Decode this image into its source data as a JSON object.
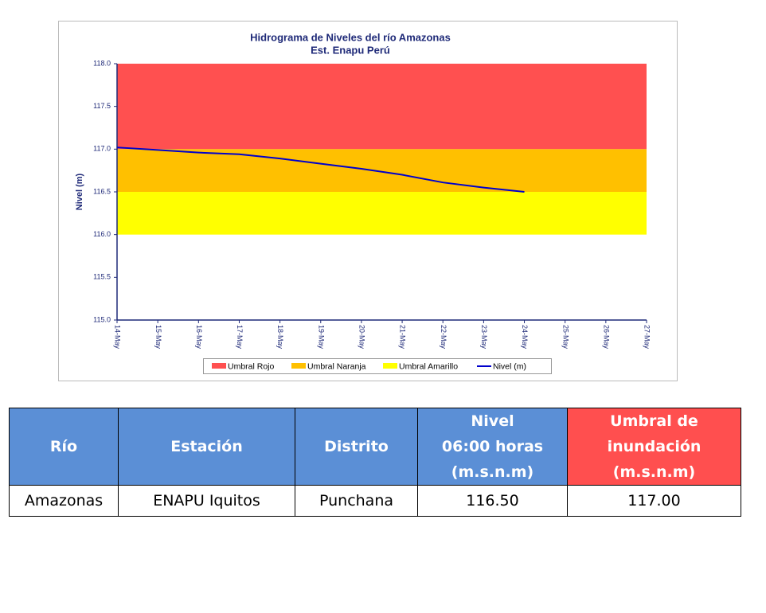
{
  "chart_data": {
    "type": "line",
    "title": "Hidrograma de Niveles del río Amazonas",
    "subtitle": "Est. Enapu Perú",
    "y_label": "Nivel (m)",
    "categories": [
      "14-May",
      "15-May",
      "16-May",
      "17-May",
      "18-May",
      "19-May",
      "20-May",
      "21-May",
      "22-May",
      "23-May",
      "24-May",
      "25-May",
      "26-May",
      "27-May"
    ],
    "bands": [
      {
        "name": "Umbral Rojo",
        "color": "#ff5050",
        "from": 117,
        "to": 118
      },
      {
        "name": "Umbral Naranja",
        "color": "#ffc000",
        "from": 116.5,
        "to": 117
      },
      {
        "name": "Umbral Amarillo",
        "color": "#ffff00",
        "from": 116,
        "to": 116.5
      }
    ],
    "series": [
      {
        "name": "Nivel (m)",
        "color": "#0000cc",
        "values": [
          117.02,
          116.99,
          116.96,
          116.94,
          116.89,
          116.83,
          116.77,
          116.7,
          116.61,
          116.55,
          116.5,
          null,
          null,
          null
        ]
      }
    ],
    "ylim": [
      115,
      118
    ],
    "yticks": [
      {
        "value": 115,
        "label": "115.0"
      },
      115.5,
      {
        "value": 116,
        "label": "116.0"
      },
      116.5,
      {
        "value": 117,
        "label": "117.0"
      },
      117.5,
      {
        "value": 118,
        "label": "118.0"
      }
    ],
    "grid": false,
    "legend": "bottom"
  },
  "table": {
    "header": [
      [
        "Río"
      ],
      [
        "Estación"
      ],
      [
        "Distrito"
      ],
      [
        "Nivel",
        "06:00 horas",
        "(m.s.n.m)"
      ],
      [
        "Umbral de",
        "inundación",
        "(m.s.n.m)"
      ]
    ],
    "rows": [
      [
        "Amazonas",
        "ENAPU Iquitos",
        "Punchana",
        "116.50",
        "117.00"
      ]
    ]
  }
}
